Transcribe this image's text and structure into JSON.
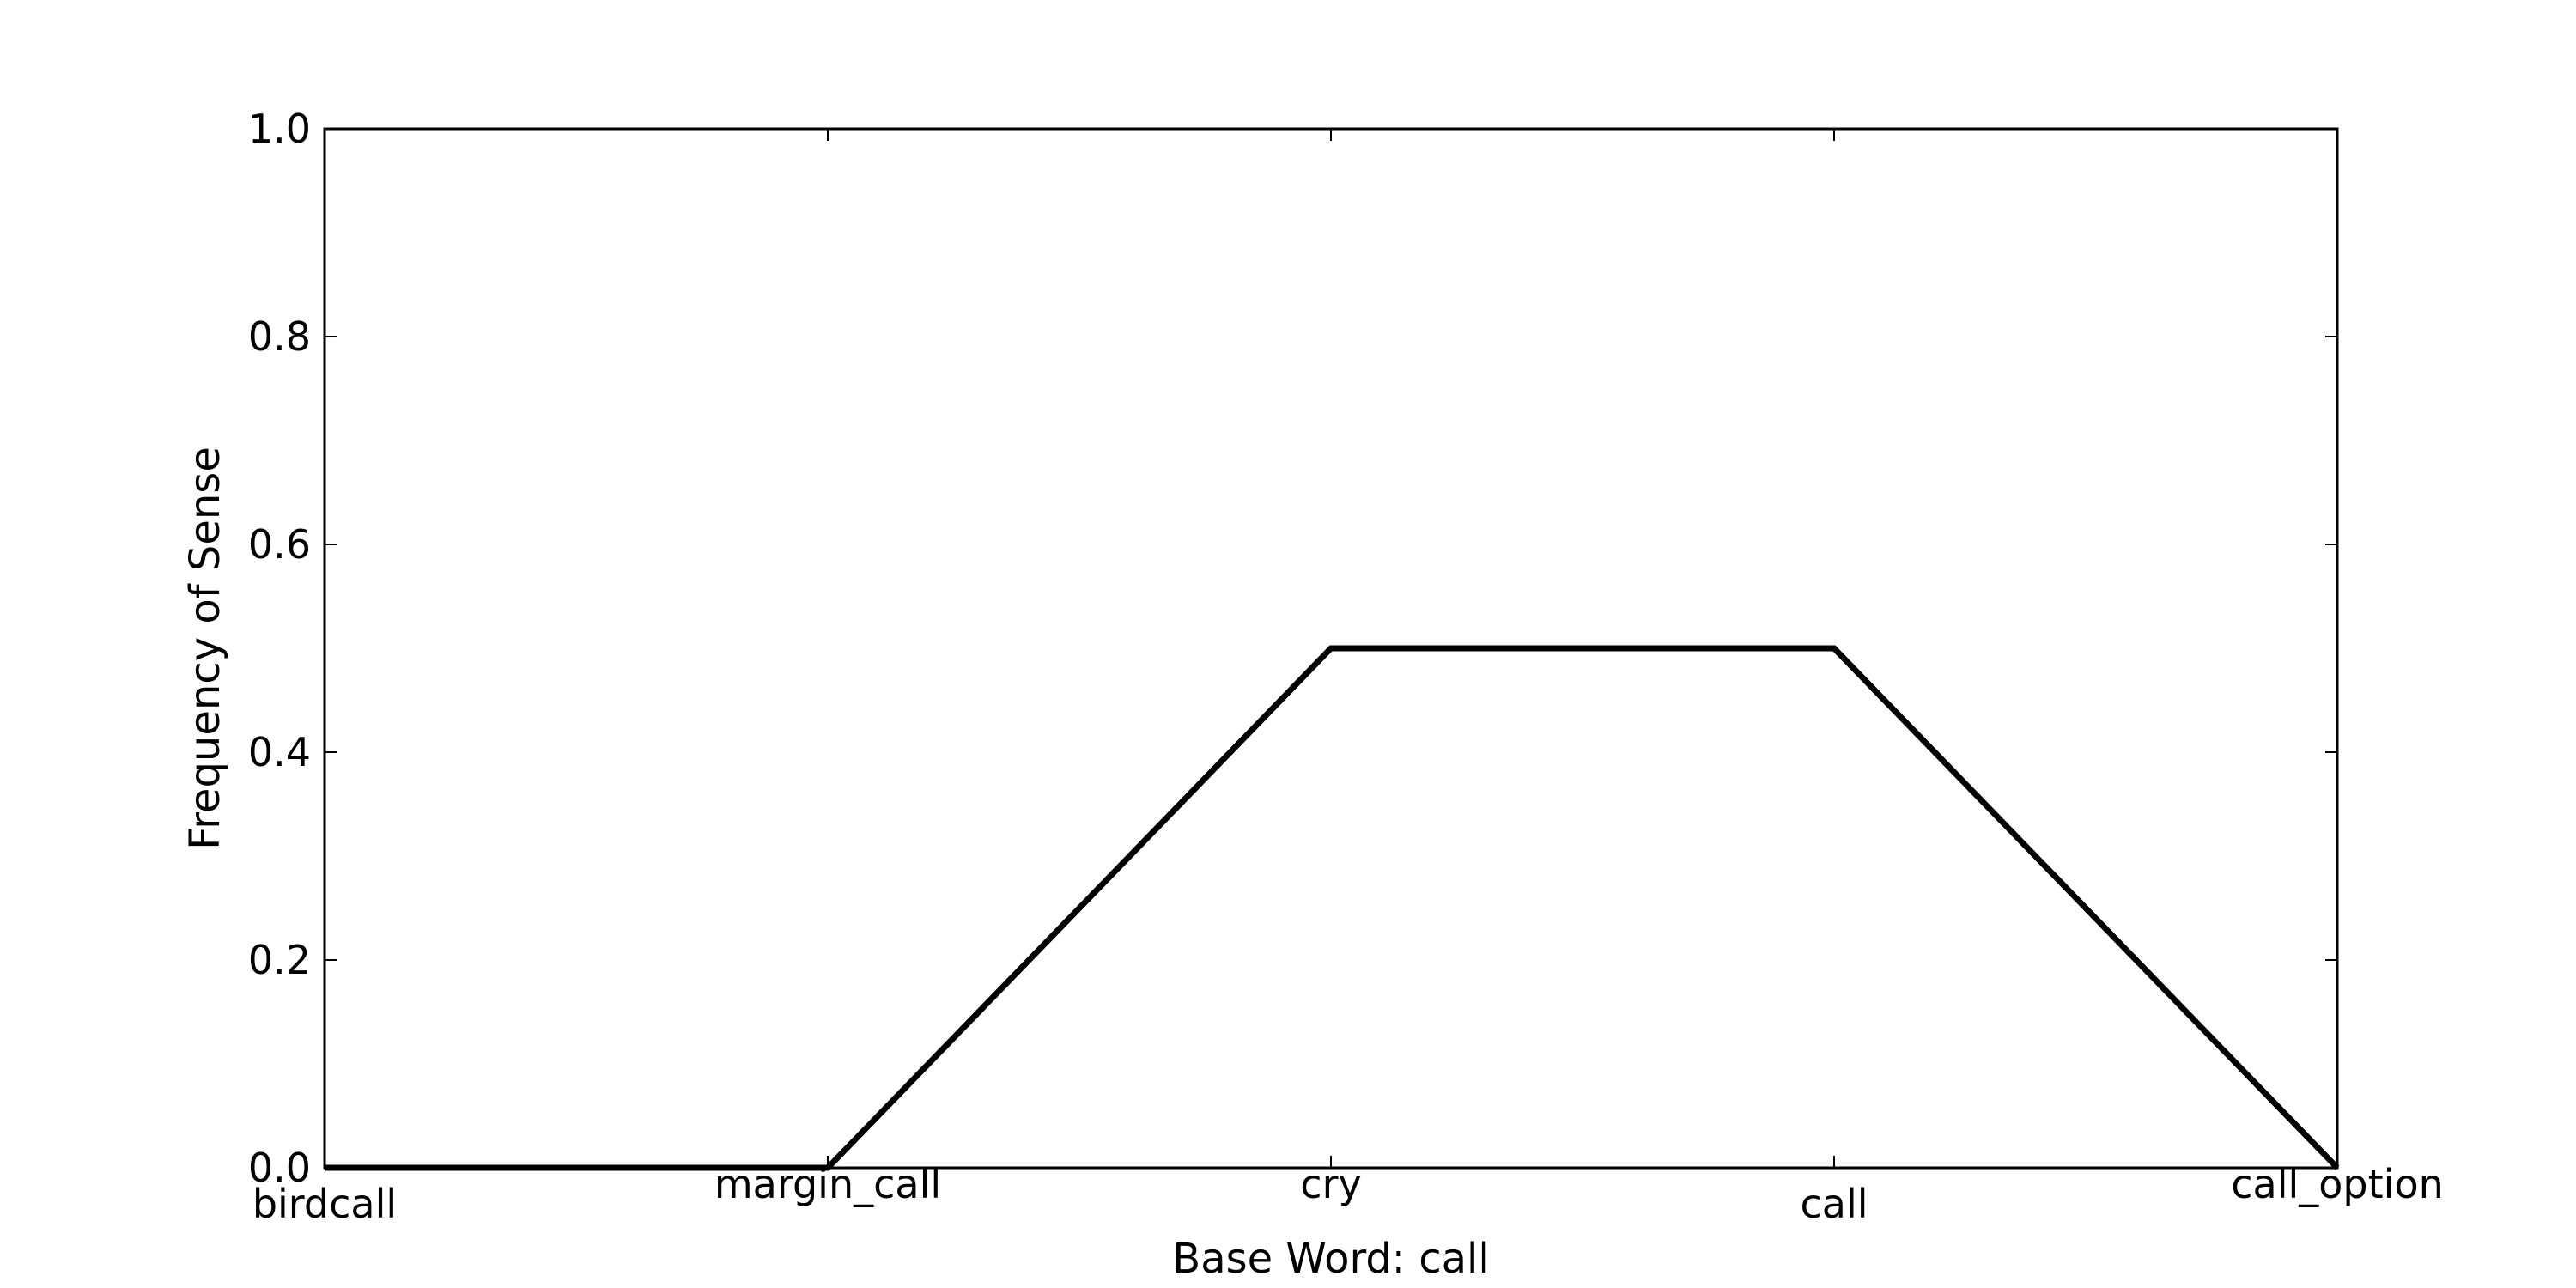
{
  "chart_data": {
    "type": "line",
    "categories": [
      "birdcall",
      "margin_call",
      "cry",
      "call",
      "call_option"
    ],
    "series": [
      {
        "values": [
          0.0,
          0.0,
          0.5,
          0.5,
          0.0
        ]
      }
    ],
    "xlabel": "Base Word: call",
    "ylabel": "Frequency of Sense",
    "ylim": [
      0.0,
      1.0
    ],
    "yticks": [
      "0.0",
      "0.2",
      "0.4",
      "0.6",
      "0.8",
      "1.0"
    ],
    "grid": false,
    "legend": "none",
    "line_color": "#000000"
  }
}
